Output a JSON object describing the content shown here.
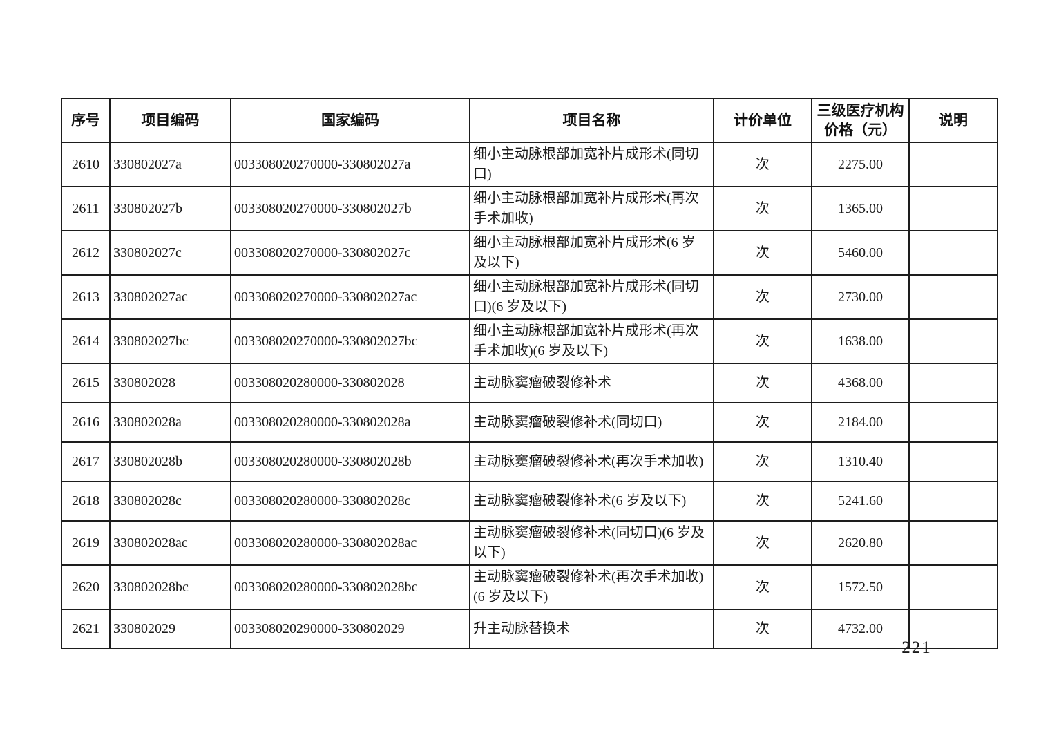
{
  "table": {
    "columns": [
      {
        "key": "index",
        "label": "序号"
      },
      {
        "key": "project_code",
        "label": "项目编码"
      },
      {
        "key": "national_code",
        "label": "国家编码"
      },
      {
        "key": "project_name",
        "label": "项目名称"
      },
      {
        "key": "pricing_unit",
        "label": "计价单位"
      },
      {
        "key": "tier3_price",
        "label": "三级医疗机构\n价格（元）"
      },
      {
        "key": "note",
        "label": "说明"
      }
    ],
    "rows": [
      {
        "index": "2610",
        "project_code": "330802027a",
        "national_code": "003308020270000-330802027a",
        "project_name": "细小主动脉根部加宽补片成形术(同切口)",
        "pricing_unit": "次",
        "tier3_price": "2275.00",
        "note": ""
      },
      {
        "index": "2611",
        "project_code": "330802027b",
        "national_code": "003308020270000-330802027b",
        "project_name": "细小主动脉根部加宽补片成形术(再次手术加收)",
        "pricing_unit": "次",
        "tier3_price": "1365.00",
        "note": ""
      },
      {
        "index": "2612",
        "project_code": "330802027c",
        "national_code": "003308020270000-330802027c",
        "project_name": "细小主动脉根部加宽补片成形术(6 岁及以下)",
        "pricing_unit": "次",
        "tier3_price": "5460.00",
        "note": ""
      },
      {
        "index": "2613",
        "project_code": "330802027ac",
        "national_code": "003308020270000-330802027ac",
        "project_name": "细小主动脉根部加宽补片成形术(同切口)(6 岁及以下)",
        "pricing_unit": "次",
        "tier3_price": "2730.00",
        "note": ""
      },
      {
        "index": "2614",
        "project_code": "330802027bc",
        "national_code": "003308020270000-330802027bc",
        "project_name": "细小主动脉根部加宽补片成形术(再次手术加收)(6 岁及以下)",
        "pricing_unit": "次",
        "tier3_price": "1638.00",
        "note": ""
      },
      {
        "index": "2615",
        "project_code": "330802028",
        "national_code": "003308020280000-330802028",
        "project_name": "主动脉窦瘤破裂修补术",
        "pricing_unit": "次",
        "tier3_price": "4368.00",
        "note": ""
      },
      {
        "index": "2616",
        "project_code": "330802028a",
        "national_code": "003308020280000-330802028a",
        "project_name": "主动脉窦瘤破裂修补术(同切口)",
        "pricing_unit": "次",
        "tier3_price": "2184.00",
        "note": ""
      },
      {
        "index": "2617",
        "project_code": "330802028b",
        "national_code": "003308020280000-330802028b",
        "project_name": "主动脉窦瘤破裂修补术(再次手术加收)",
        "pricing_unit": "次",
        "tier3_price": "1310.40",
        "note": ""
      },
      {
        "index": "2618",
        "project_code": "330802028c",
        "national_code": "003308020280000-330802028c",
        "project_name": "主动脉窦瘤破裂修补术(6 岁及以下)",
        "pricing_unit": "次",
        "tier3_price": "5241.60",
        "note": ""
      },
      {
        "index": "2619",
        "project_code": "330802028ac",
        "national_code": "003308020280000-330802028ac",
        "project_name": "主动脉窦瘤破裂修补术(同切口)(6 岁及以下)",
        "pricing_unit": "次",
        "tier3_price": "2620.80",
        "note": ""
      },
      {
        "index": "2620",
        "project_code": "330802028bc",
        "national_code": "003308020280000-330802028bc",
        "project_name": "主动脉窦瘤破裂修补术(再次手术加收)(6 岁及以下)",
        "pricing_unit": "次",
        "tier3_price": "1572.50",
        "note": ""
      },
      {
        "index": "2621",
        "project_code": "330802029",
        "national_code": "003308020290000-330802029",
        "project_name": "升主动脉替换术",
        "pricing_unit": "次",
        "tier3_price": "4732.00",
        "note": ""
      }
    ]
  },
  "footer": {
    "page_label": "— 221 —"
  }
}
